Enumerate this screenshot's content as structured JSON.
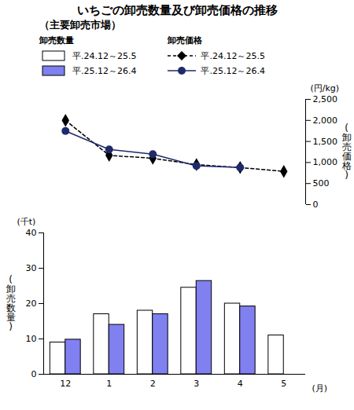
{
  "chart_data": [
    {
      "type": "bar",
      "title": "いちごの卸売数量及び卸売価格の推移",
      "subtitle": "（主要卸売市場）",
      "legend_title": "卸売数量",
      "legend": "top-left",
      "ylabel": "(卸売数量)",
      "y_unit": "(千t)",
      "xlabel": "(月)",
      "categories": [
        "12",
        "1",
        "2",
        "3",
        "4",
        "5"
      ],
      "series": [
        {
          "name": "平.24.12～25.5",
          "color": "#ffffff",
          "values": [
            9,
            17,
            18,
            24.5,
            20,
            11
          ]
        },
        {
          "name": "平.25.12～26.4",
          "color": "#8080f0",
          "values": [
            9.8,
            14,
            17,
            26.4,
            19.2,
            null
          ]
        }
      ],
      "ylim": [
        0,
        40
      ],
      "yticks": [
        0,
        10,
        20,
        30,
        40
      ],
      "grid": false
    },
    {
      "type": "line",
      "legend_title": "卸売価格",
      "legend": "top-left",
      "ylabel": "(卸売価格)",
      "y_unit": "(円/kg)",
      "categories": [
        "12",
        "1",
        "2",
        "3",
        "4",
        "5"
      ],
      "tick_labels": "y",
      "series": [
        {
          "name": "平.24.12～25.5",
          "color": "#000000",
          "line_style": "dashed",
          "marker": "diamond",
          "values": [
            2000,
            1170,
            1100,
            950,
            880,
            790
          ]
        },
        {
          "name": "平.25.12～26.4",
          "color": "#1f2a6b",
          "line_style": "solid",
          "marker": "circle",
          "values": [
            1750,
            1310,
            1200,
            920,
            880,
            null
          ]
        }
      ],
      "ylim": [
        0,
        2500
      ],
      "yticks": [
        0,
        500,
        {
          "value": 1000,
          "label": "1,000"
        },
        {
          "value": 1500,
          "label": "1,500"
        },
        {
          "value": 2000,
          "label": "2,000"
        },
        {
          "value": 2500,
          "label": "2,500"
        }
      ],
      "grid": false
    }
  ]
}
